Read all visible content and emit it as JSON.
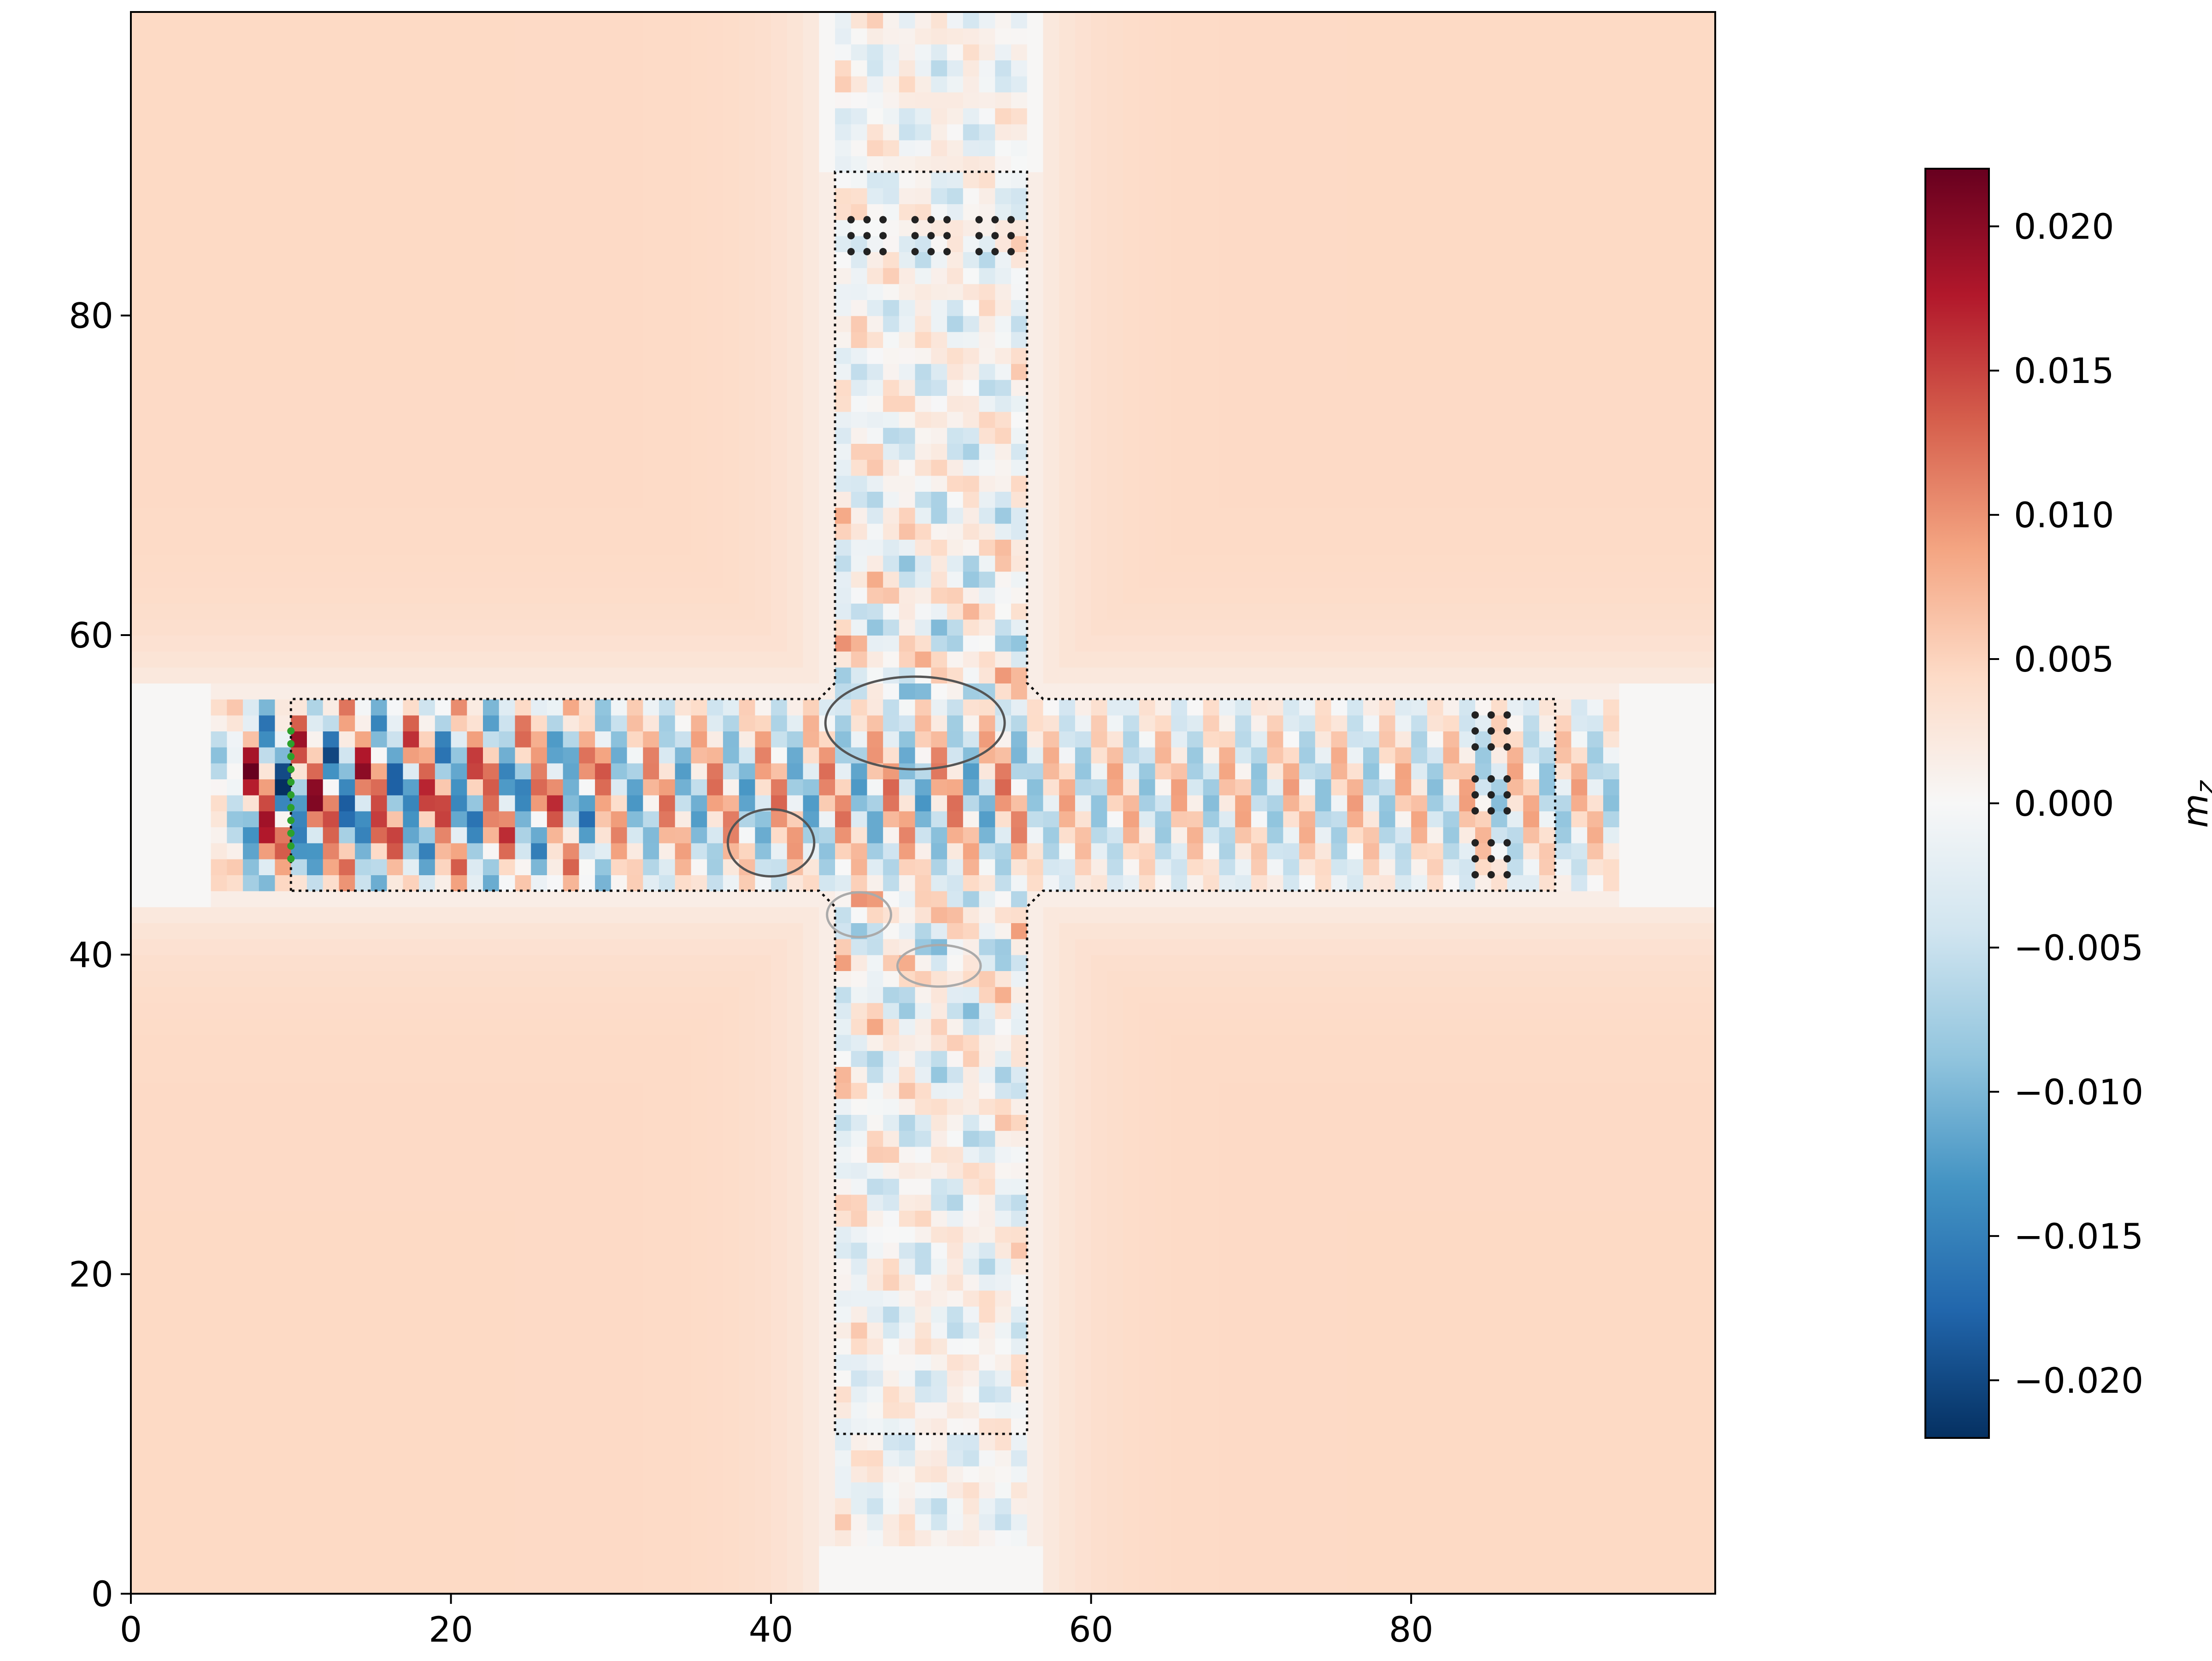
{
  "chart_data": {
    "type": "heatmap",
    "title": "",
    "xlabel": "",
    "ylabel": "",
    "xlim": [
      0,
      99
    ],
    "ylim": [
      0,
      99
    ],
    "x_ticks": [
      0,
      20,
      40,
      60,
      80
    ],
    "y_ticks": [
      0,
      20,
      40,
      60,
      80
    ],
    "x_tick_labels": [
      "0",
      "20",
      "40",
      "60",
      "80"
    ],
    "y_tick_labels": [
      "0",
      "20",
      "40",
      "60",
      "80"
    ],
    "grid": false,
    "colormap": "RdBu_r",
    "field_description": "",
    "background_value": 0.0045,
    "waveguides": {
      "horizontal": {
        "x": [
          10,
          89
        ],
        "y": [
          44,
          56
        ]
      },
      "vertical": {
        "x": [
          44,
          56
        ],
        "y": [
          10,
          89
        ]
      }
    },
    "colorbar": {
      "label": "m_z",
      "label_main": "m",
      "label_sub": "z",
      "range": [
        -0.022,
        0.022
      ],
      "ticks": [
        0.02,
        0.015,
        0.01,
        0.005,
        0.0,
        -0.005,
        -0.01,
        -0.015,
        -0.02
      ],
      "tick_labels": [
        "0.020",
        "0.015",
        "0.010",
        "0.005",
        "0.000",
        "−0.005",
        "−0.010",
        "−0.015",
        "−0.020"
      ]
    },
    "annotations": {
      "source_line": {
        "x": 10,
        "y_range": [
          46,
          54
        ],
        "color": "#2ca02c"
      },
      "detector_dots": [
        {
          "x_range": [
            45,
            47
          ],
          "y_range": [
            84,
            86
          ]
        },
        {
          "x_range": [
            49,
            51
          ],
          "y_range": [
            84,
            86
          ]
        },
        {
          "x_range": [
            53,
            55
          ],
          "y_range": [
            84,
            86
          ]
        },
        {
          "x_range": [
            84,
            86
          ],
          "y_range": [
            53,
            55
          ]
        },
        {
          "x_range": [
            84,
            86
          ],
          "y_range": [
            49,
            51
          ]
        },
        {
          "x_range": [
            84,
            86
          ],
          "y_range": [
            45,
            47
          ]
        }
      ],
      "contours": [
        {
          "cx": 49,
          "cy": 54.5,
          "rx": 5.6,
          "ry": 2.9,
          "color": "#555555"
        },
        {
          "cx": 40,
          "cy": 47,
          "rx": 2.7,
          "ry": 2.1,
          "color": "#555555"
        },
        {
          "cx": 45.5,
          "cy": 42.5,
          "rx": 2.0,
          "ry": 1.4,
          "color": "#aaaaaa"
        },
        {
          "cx": 50.5,
          "cy": 39.3,
          "rx": 2.6,
          "ry": 1.3,
          "color": "#aaaaaa"
        }
      ]
    }
  }
}
